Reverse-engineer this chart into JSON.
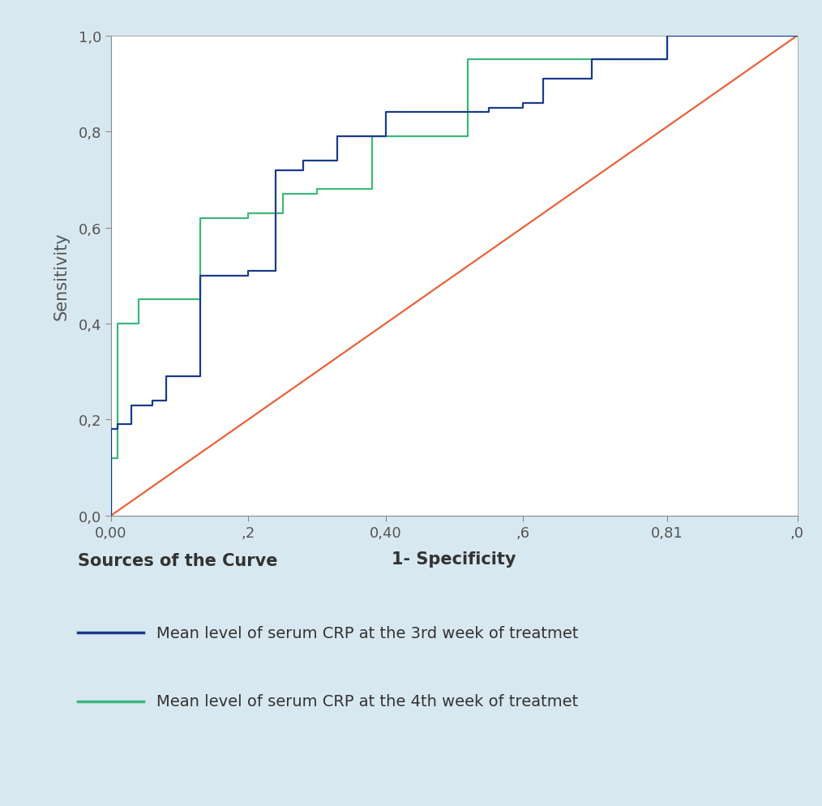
{
  "background_color": "#d8e8f0",
  "plot_bg_color": "#ffffff",
  "xlabel": "1- Specificity",
  "ylabel": "Sensitivity",
  "xlim": [
    0.0,
    1.0
  ],
  "ylim": [
    0.0,
    1.0
  ],
  "xtick_labels": [
    "0,00",
    ",2",
    "0,40",
    ",6",
    "0,81",
    ",0"
  ],
  "xtick_positions": [
    0.0,
    0.2,
    0.4,
    0.6,
    0.81,
    1.0
  ],
  "ytick_labels": [
    "0,0",
    "0,2",
    "0,4",
    "0,6",
    "0,8",
    "1,0"
  ],
  "ytick_positions": [
    0.0,
    0.2,
    0.4,
    0.6,
    0.8,
    1.0
  ],
  "diagonal_color": "#e8623a",
  "curve3_color": "#1a3a8c",
  "curve4_color": "#3db87a",
  "curve3_x": [
    0.0,
    0.0,
    0.01,
    0.01,
    0.03,
    0.03,
    0.06,
    0.06,
    0.08,
    0.08,
    0.13,
    0.13,
    0.2,
    0.2,
    0.24,
    0.24,
    0.28,
    0.28,
    0.33,
    0.33,
    0.4,
    0.4,
    0.45,
    0.45,
    0.55,
    0.55,
    0.6,
    0.6,
    0.63,
    0.63,
    0.7,
    0.7,
    0.81,
    0.81,
    1.0
  ],
  "curve3_y": [
    0.0,
    0.18,
    0.18,
    0.19,
    0.19,
    0.23,
    0.23,
    0.24,
    0.24,
    0.29,
    0.29,
    0.5,
    0.5,
    0.51,
    0.51,
    0.72,
    0.72,
    0.74,
    0.74,
    0.79,
    0.79,
    0.84,
    0.84,
    0.84,
    0.84,
    0.85,
    0.85,
    0.86,
    0.86,
    0.91,
    0.91,
    0.95,
    0.95,
    1.0,
    1.0
  ],
  "curve4_x": [
    0.0,
    0.0,
    0.01,
    0.01,
    0.04,
    0.04,
    0.13,
    0.13,
    0.2,
    0.2,
    0.25,
    0.25,
    0.3,
    0.3,
    0.38,
    0.38,
    0.45,
    0.45,
    0.52,
    0.52,
    0.6,
    0.6,
    0.63,
    0.63,
    0.81,
    0.81,
    1.0
  ],
  "curve4_y": [
    0.0,
    0.12,
    0.12,
    0.4,
    0.4,
    0.45,
    0.45,
    0.62,
    0.62,
    0.63,
    0.63,
    0.67,
    0.67,
    0.68,
    0.68,
    0.79,
    0.79,
    0.79,
    0.79,
    0.95,
    0.95,
    0.95,
    0.95,
    0.95,
    0.95,
    1.0,
    1.0
  ],
  "legend_title": "Sources of the Curve",
  "legend_label3": "Mean level of serum CRP at the 3rd week of treatmet",
  "legend_label4": "Mean level of serum CRP at the 4th week of treatmet",
  "axis_label_fontsize": 15,
  "tick_fontsize": 13,
  "legend_fontsize": 14,
  "legend_title_fontsize": 15
}
